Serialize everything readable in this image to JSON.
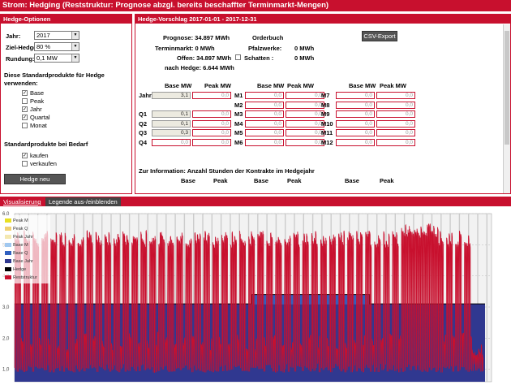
{
  "title": "Strom: Hedging (Reststruktur: Prognose abzgl. bereits beschaffter Terminmarkt-Mengen)",
  "left": {
    "header": "Hedge-Optionen",
    "jahr_label": "Jahr:",
    "jahr_value": "2017",
    "ziel_label": "Ziel-Hedge:",
    "ziel_value": "80 %",
    "rund_label": "Rundung:",
    "rund_value": "0,1 MW",
    "std_heading_1": "Diese Standardprodukte für Hedge",
    "std_heading_2": "verwenden:",
    "products": [
      {
        "label": "Base",
        "checked": true
      },
      {
        "label": "Peak",
        "checked": false
      },
      {
        "label": "Jahr",
        "checked": true
      },
      {
        "label": "Quartal",
        "checked": true
      },
      {
        "label": "Monat",
        "checked": false
      }
    ],
    "bedarf_heading": "Standardprodukte bei Bedarf",
    "bedarf": [
      {
        "label": "kaufen",
        "checked": true
      },
      {
        "label": "verkaufen",
        "checked": false
      }
    ],
    "recalc_button": "Hedge neu berechnen"
  },
  "right": {
    "header": "Hedge-Vorschlag 2017-01-01 - 2017-12-31",
    "prognose": "Prognose: 34.897 MWh",
    "terminmarkt": "Terminmarkt:      0 MWh",
    "offen": "Offen: 34.897 MWh",
    "nach_hedge": "nach Hedge:   6.644 MWh",
    "orderbuch": "Orderbuch",
    "pfalz": "Pfalzwerke:",
    "pfalz_val": "0 MWh",
    "schatten": "Schatten :",
    "schatten_val": "0 MWh",
    "csv_button": "CSV-Export",
    "col_base": "Base MW",
    "col_peak": "Peak MW",
    "rows_left": [
      {
        "label": "Jahr",
        "base": "3,1",
        "peak": "0,0",
        "filled": true
      },
      {
        "label": "Q1",
        "base": "0,1",
        "peak": "0,0",
        "filled": true
      },
      {
        "label": "Q2",
        "base": "0,1",
        "peak": "0,0",
        "filled": true
      },
      {
        "label": "Q3",
        "base": "0,3",
        "peak": "0,0",
        "filled": true
      },
      {
        "label": "Q4",
        "base": "0,0",
        "peak": "0,0",
        "filled": false
      }
    ],
    "rows_mid": [
      {
        "label": "M1",
        "base": "0,0",
        "peak": "0,0"
      },
      {
        "label": "M2",
        "base": "0,0",
        "peak": "0,0"
      },
      {
        "label": "M3",
        "base": "0,0",
        "peak": "0,0"
      },
      {
        "label": "M4",
        "base": "0,0",
        "peak": "0,0"
      },
      {
        "label": "M5",
        "base": "0,0",
        "peak": "0,0"
      },
      {
        "label": "M6",
        "base": "0,0",
        "peak": "0,0"
      }
    ],
    "rows_right": [
      {
        "label": "M7",
        "base": "0,0",
        "peak": "0,0"
      },
      {
        "label": "M8",
        "base": "0,0",
        "peak": "0,0"
      },
      {
        "label": "M9",
        "base": "0,0",
        "peak": "0,0"
      },
      {
        "label": "M10",
        "base": "0,0",
        "peak": "0,0"
      },
      {
        "label": "M11",
        "base": "0,0",
        "peak": "0,0"
      },
      {
        "label": "M12",
        "base": "0,0",
        "peak": "0,0"
      }
    ],
    "info": "Zur Information: Anzahl Stunden der Kontrakte im Hedgejahr",
    "info_base": "Base",
    "info_peak": "Peak"
  },
  "tabs": {
    "vis": "Visualisierung",
    "legend": "Legende aus-/einblenden"
  },
  "chart_data": {
    "type": "area",
    "y_ticks": [
      "6,0",
      "5,0",
      "4,0",
      "3,0",
      "2,0",
      "1,0"
    ],
    "ylim": [
      0.6,
      6.0
    ],
    "legend": [
      {
        "name": "Peak M",
        "color": "#e8e020"
      },
      {
        "name": "Peak Q",
        "color": "#f0d070"
      },
      {
        "name": "Peak Jahr",
        "color": "#f4e8b0"
      },
      {
        "name": "Base M",
        "color": "#a0c8f0"
      },
      {
        "name": "Base Q",
        "color": "#3060c0"
      },
      {
        "name": "Base Jahr",
        "color": "#303890"
      },
      {
        "name": "Hedge",
        "color": "#000000"
      },
      {
        "name": "Reststruktur",
        "color": "#c8102e"
      }
    ],
    "base_jahr": 3.1,
    "base_q3_extra": 0.3
  }
}
